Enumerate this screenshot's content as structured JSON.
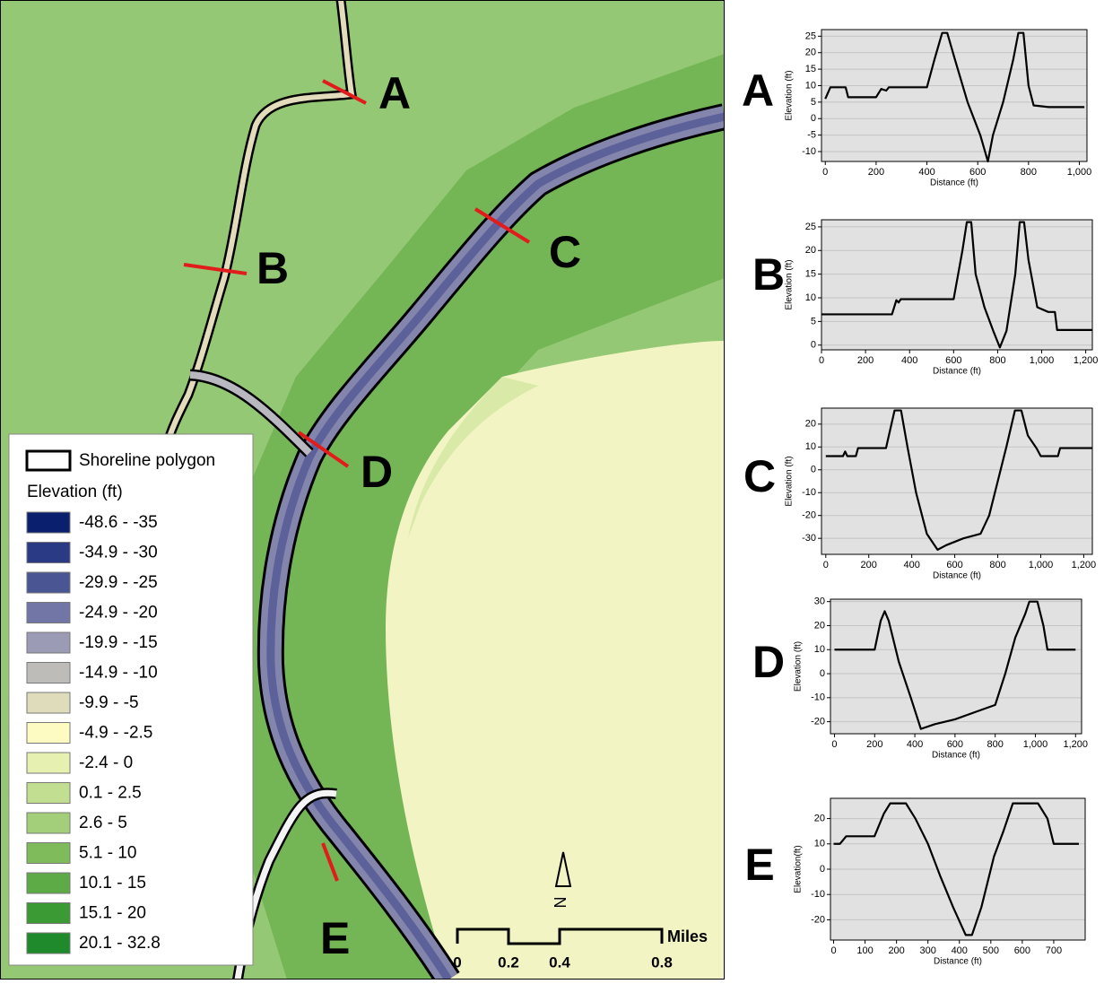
{
  "map": {
    "section_labels": [
      "A",
      "B",
      "C",
      "D",
      "E"
    ],
    "legend": {
      "shoreline": "Shoreline polygon",
      "title": "Elevation (ft)",
      "items": [
        {
          "label": "-48.6 - -35",
          "color": "#0a1f6e"
        },
        {
          "label": "-34.9 - -30",
          "color": "#2a3a85"
        },
        {
          "label": "-29.9 - -25",
          "color": "#4a5694"
        },
        {
          "label": "-24.9 - -20",
          "color": "#7276a6"
        },
        {
          "label": "-19.9 - -15",
          "color": "#9b9bb6"
        },
        {
          "label": "-14.9 - -10",
          "color": "#bdbcb8"
        },
        {
          "label": "-9.9 - -5",
          "color": "#dedcbb"
        },
        {
          "label": "-4.9 - -2.5",
          "color": "#fdfbc2"
        },
        {
          "label": "-2.4 - 0",
          "color": "#e6f0b0"
        },
        {
          "label": "0.1 - 2.5",
          "color": "#c2df91"
        },
        {
          "label": "2.6 - 5",
          "color": "#a3cf7a"
        },
        {
          "label": "5.1 - 10",
          "color": "#7fbb5a"
        },
        {
          "label": "10.1 - 15",
          "color": "#5dab47"
        },
        {
          "label": "15.1 - 20",
          "color": "#3b9a33"
        },
        {
          "label": "20.1 - 32.8",
          "color": "#1f8a2b"
        }
      ]
    },
    "scale": {
      "labels": [
        "0",
        "0.2",
        "0.4",
        "0.8"
      ],
      "unit": "Miles"
    },
    "north": "N"
  },
  "chart_data": [
    {
      "type": "line",
      "title": "A",
      "xlabel": "Distance (ft)",
      "ylabel": "Elevation (ft)",
      "color": "#000000",
      "grid": true,
      "x": [
        0,
        20,
        80,
        90,
        200,
        220,
        240,
        250,
        400,
        430,
        460,
        480,
        510,
        560,
        610,
        640,
        660,
        700,
        740,
        760,
        780,
        800,
        820,
        880,
        1020
      ],
      "values": [
        6,
        9.5,
        9.5,
        6.5,
        6.5,
        9,
        8.5,
        9.5,
        9.5,
        18,
        26,
        26,
        18,
        5,
        -5,
        -13,
        -5,
        5,
        18,
        26,
        26,
        10,
        4,
        3.5,
        3.5
      ],
      "xlim": [
        -15,
        1030
      ],
      "ylim": [
        -13,
        27
      ],
      "xticks": [
        0,
        200,
        400,
        600,
        800,
        {
          "value": 1000,
          "label": "1,000"
        }
      ],
      "yticks": [
        -10,
        -5,
        0,
        5,
        10,
        15,
        20,
        25
      ]
    },
    {
      "type": "line",
      "title": "B",
      "xlabel": "Distance (ft)",
      "ylabel": "Elevation (ft)",
      "color": "#000000",
      "grid": true,
      "x": [
        0,
        320,
        340,
        350,
        360,
        600,
        640,
        660,
        680,
        700,
        740,
        780,
        810,
        840,
        880,
        900,
        920,
        940,
        980,
        1030,
        1060,
        1070,
        1230
      ],
      "values": [
        6.5,
        6.5,
        9.5,
        9,
        9.7,
        9.7,
        20,
        26,
        26,
        15,
        8,
        3,
        -0.5,
        3,
        15,
        26,
        26,
        18,
        8,
        7,
        7,
        3.2,
        3.2
      ],
      "xlim": [
        0,
        1230
      ],
      "ylim": [
        -1,
        26.5
      ],
      "xticks": [
        0,
        200,
        400,
        600,
        800,
        {
          "value": 1000,
          "label": "1,000"
        },
        {
          "value": 1200,
          "label": "1,200"
        }
      ],
      "yticks": [
        0,
        5,
        10,
        15,
        20,
        25
      ]
    },
    {
      "type": "line",
      "title": "C",
      "xlabel": "Distance (ft)",
      "ylabel": "Elevation (ft)",
      "color": "#000000",
      "grid": true,
      "x": [
        0,
        80,
        90,
        100,
        140,
        150,
        280,
        320,
        350,
        380,
        420,
        470,
        520,
        560,
        640,
        720,
        760,
        800,
        840,
        880,
        910,
        940,
        980,
        1000,
        1080,
        1090,
        1240
      ],
      "values": [
        6,
        6,
        8,
        6,
        6,
        9.5,
        9.5,
        26,
        26,
        10,
        -10,
        -28,
        -35,
        -33,
        -30,
        -28,
        -20,
        -5,
        10,
        26,
        26,
        15,
        9.5,
        6,
        6,
        9.5,
        9.5
      ],
      "xlim": [
        -20,
        1240
      ],
      "ylim": [
        -37,
        27
      ],
      "xticks": [
        0,
        200,
        400,
        600,
        800,
        {
          "value": 1000,
          "label": "1,000"
        },
        {
          "value": 1200,
          "label": "1,200"
        }
      ],
      "yticks": [
        -30,
        -20,
        -10,
        0,
        10,
        20
      ]
    },
    {
      "type": "line",
      "title": "D",
      "xlabel": "Distance (ft)",
      "ylabel": "Elevation (ft)",
      "color": "#000000",
      "grid": true,
      "x": [
        0,
        200,
        230,
        250,
        270,
        320,
        380,
        430,
        500,
        600,
        700,
        800,
        850,
        900,
        950,
        970,
        1010,
        1040,
        1060,
        1200
      ],
      "values": [
        10,
        10,
        22,
        26,
        22,
        5,
        -10,
        -23,
        -21,
        -19,
        -16,
        -13,
        0,
        15,
        25,
        30,
        30,
        20,
        10,
        10
      ],
      "xlim": [
        -20,
        1230
      ],
      "ylim": [
        -25,
        31
      ],
      "xticks": [
        0,
        200,
        400,
        600,
        800,
        {
          "value": 1000,
          "label": "1,000"
        },
        {
          "value": 1200,
          "label": "1,200"
        }
      ],
      "yticks": [
        -20,
        -10,
        0,
        10,
        20,
        30
      ]
    },
    {
      "type": "line",
      "title": "E",
      "xlabel": "Distance (ft)",
      "ylabel": "Elevation(ft)",
      "color": "#000000",
      "grid": true,
      "x": [
        0,
        20,
        40,
        130,
        160,
        180,
        230,
        260,
        300,
        340,
        380,
        420,
        440,
        470,
        510,
        540,
        570,
        650,
        680,
        700,
        780
      ],
      "values": [
        10,
        10,
        13,
        13,
        22,
        26,
        26,
        20,
        10,
        -3,
        -15,
        -26,
        -26,
        -15,
        5,
        15,
        26,
        26,
        20,
        10,
        10
      ],
      "xlim": [
        -10,
        800
      ],
      "ylim": [
        -28,
        28
      ],
      "xticks": [
        0,
        100,
        200,
        300,
        400,
        500,
        600,
        700
      ],
      "yticks": [
        -20,
        -10,
        0,
        10,
        20
      ]
    }
  ]
}
